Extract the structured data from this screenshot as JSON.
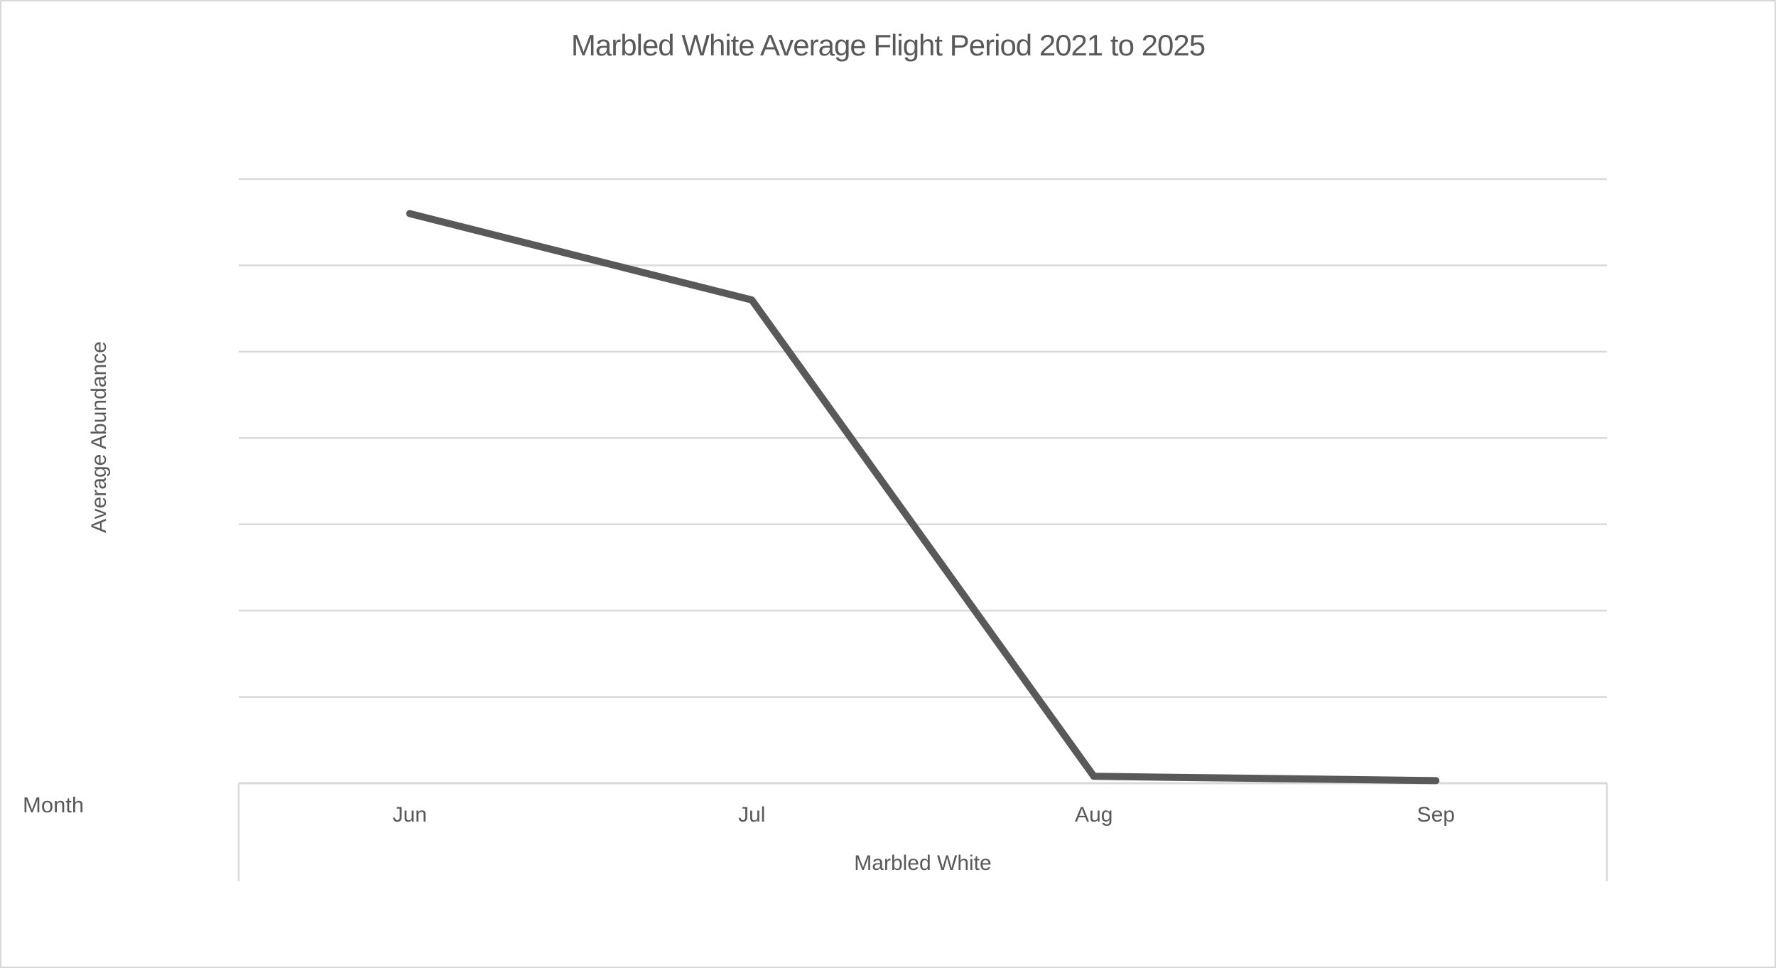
{
  "chart_data": {
    "type": "line",
    "title": "Marbled White Average Flight Period 2021 to 2025",
    "xlabel": "Month",
    "ylabel": "Average Abundance",
    "categories": [
      "Jun",
      "Jul",
      "Aug",
      "Sep"
    ],
    "series": [
      {
        "name": "Marbled White",
        "values": [
          6.6,
          5.6,
          0.08,
          0.03
        ]
      }
    ],
    "ylim": [
      0,
      7
    ],
    "y_gridline_step": 1,
    "y_tick_labels_visible": false,
    "grid": true,
    "legend_position": "none",
    "colors": {
      "line": "#595959",
      "gridline": "#d9d9d9",
      "axis_line": "#d9d9d9",
      "text": "#595959",
      "background": "#ffffff",
      "canvas_border": "#d9d9d9"
    }
  }
}
